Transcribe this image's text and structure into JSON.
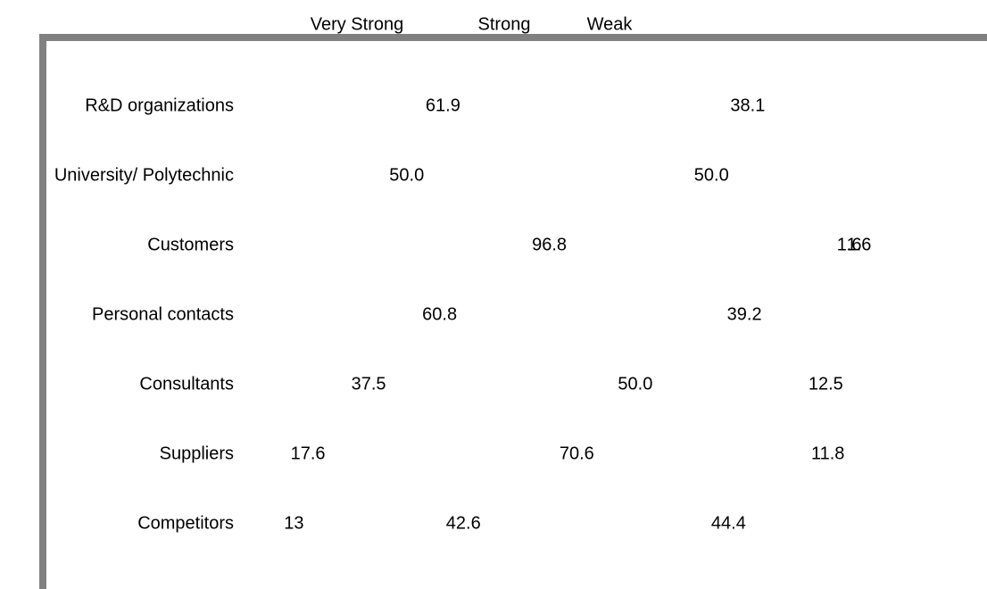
{
  "chart_data": {
    "type": "stacked-barh",
    "categories": [
      "R&D organizations",
      "University/ Polytechnic",
      "Customers",
      "Personal contacts",
      "Consultants",
      "Suppliers",
      "Competitors"
    ],
    "series": [
      {
        "name": "Very Strong",
        "color": "#ffffff",
        "values": [
          61.9,
          50,
          96.8,
          60.8,
          37.5,
          17.6,
          13
        ],
        "value_labels": [
          "61.9",
          "50.0",
          "96.8",
          "60.8",
          "37.5",
          "17.6",
          "13"
        ]
      },
      {
        "name": "Strong",
        "color": "#ffffff",
        "values": [
          38.1,
          50,
          1.6,
          39.2,
          50,
          70.6,
          42.6
        ],
        "value_labels": [
          "38.1",
          "50.0",
          "1.6",
          "39.2",
          "50.0",
          "70.6",
          "42.6"
        ]
      },
      {
        "name": "Weak",
        "color": "#ffffff",
        "values": [
          null,
          null,
          1.6,
          null,
          12.5,
          11.8,
          44.4
        ],
        "value_labels": [
          null,
          null,
          "1.6",
          null,
          "12.5",
          "11.8",
          "44.4"
        ]
      }
    ],
    "xlim": [
      0,
      100
    ],
    "legend": "top"
  }
}
